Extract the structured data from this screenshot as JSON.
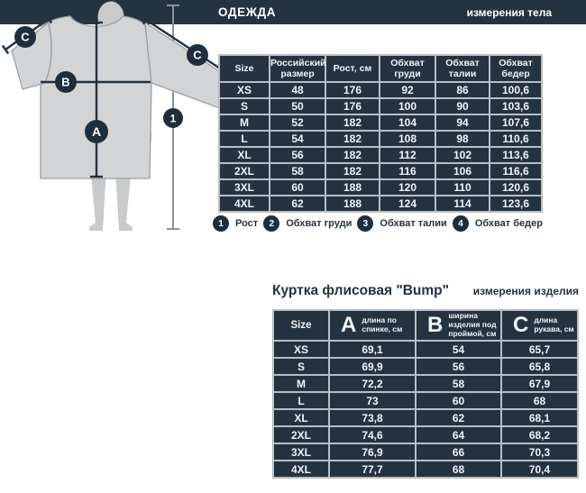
{
  "header": {
    "title": "ОДЕЖДА",
    "subtitle": "измерения тела"
  },
  "body_table": {
    "columns": [
      "Size",
      "Российский размер",
      "Рост, см",
      "Обхват груди",
      "Обхват талии",
      "Обхват бедер"
    ],
    "rows": [
      [
        "XS",
        "48",
        "176",
        "92",
        "86",
        "100,6"
      ],
      [
        "S",
        "50",
        "176",
        "100",
        "90",
        "103,6"
      ],
      [
        "M",
        "52",
        "182",
        "104",
        "94",
        "107,6"
      ],
      [
        "L",
        "54",
        "182",
        "108",
        "98",
        "110,6"
      ],
      [
        "XL",
        "56",
        "182",
        "112",
        "102",
        "113,6"
      ],
      [
        "2XL",
        "58",
        "182",
        "116",
        "106",
        "116,6"
      ],
      [
        "3XL",
        "60",
        "188",
        "120",
        "110",
        "120,6"
      ],
      [
        "4XL",
        "62",
        "188",
        "124",
        "114",
        "123,6"
      ]
    ]
  },
  "legend": [
    {
      "num": "1",
      "label": "Рост"
    },
    {
      "num": "2",
      "label": "Обхват груди"
    },
    {
      "num": "3",
      "label": "Обхват талии"
    },
    {
      "num": "4",
      "label": "Обхват бедер"
    }
  ],
  "product": {
    "title": "Куртка флисовая \"Bump\"",
    "subtitle": "измерения изделия"
  },
  "product_table": {
    "columns": [
      {
        "letter": "",
        "label": "Size"
      },
      {
        "letter": "A",
        "label": "длина по спинке, см"
      },
      {
        "letter": "B",
        "label": "ширина изделия под проймой, см"
      },
      {
        "letter": "C",
        "label": "длина рукава, см"
      }
    ],
    "rows": [
      [
        "XS",
        "69,1",
        "54",
        "65,7"
      ],
      [
        "S",
        "69,9",
        "56",
        "65,8"
      ],
      [
        "M",
        "72,2",
        "58",
        "67,9"
      ],
      [
        "L",
        "73",
        "60",
        "68"
      ],
      [
        "XL",
        "73,8",
        "62",
        "68,1"
      ],
      [
        "2XL",
        "74,6",
        "64",
        "68,2"
      ],
      [
        "3XL",
        "76,9",
        "66",
        "70,3"
      ],
      [
        "4XL",
        "77,7",
        "68",
        "70,4"
      ]
    ]
  },
  "jacket_markers": {
    "back_length": "A",
    "chest_width": "B",
    "sleeve_length": "C"
  },
  "colors": {
    "navy": "#253341",
    "badge": "#1f2e3d",
    "grid_line": "#b9bec3",
    "figure_gray": "#c9cacb",
    "jacket_fill": "#d3d4d5",
    "jacket_outline": "#9b9fa3"
  }
}
